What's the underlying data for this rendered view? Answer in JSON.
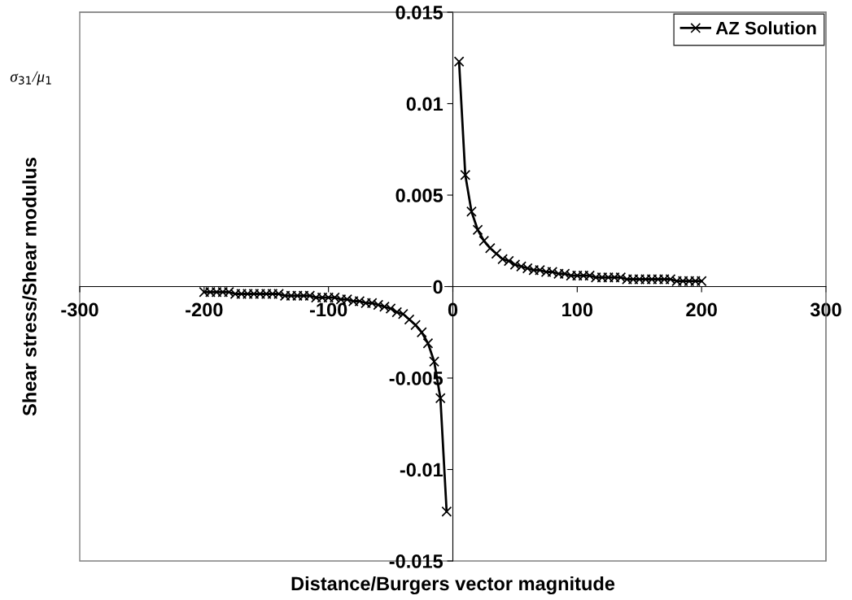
{
  "chart_data": {
    "type": "line",
    "xlabel": "Distance/Burgers vector magnitude",
    "ylabel": "Shear stress/Shear modulus",
    "annotations": [
      "σ$_{31}$/μ$_{1}$"
    ],
    "xlim": [
      -300,
      300
    ],
    "xticks": [
      -300,
      -200,
      -100,
      0,
      100,
      200,
      300
    ],
    "ylim": [
      -0.015,
      0.015
    ],
    "yticks": [
      -0.015,
      -0.01,
      -0.005,
      0,
      0.005,
      0.01,
      0.015
    ],
    "grid": false,
    "legend": "top right",
    "marker": "cross",
    "line_style": "solid",
    "series": [
      {
        "name": "AZ Solution",
        "color": "#000000",
        "x": [
          -200,
          -195,
          -190,
          -185,
          -180,
          -175,
          -170,
          -165,
          -160,
          -155,
          -150,
          -145,
          -140,
          -135,
          -130,
          -125,
          -120,
          -115,
          -110,
          -105,
          -100,
          -95,
          -90,
          -85,
          -80,
          -75,
          -70,
          -65,
          -60,
          -55,
          -50,
          -45,
          -40,
          -35,
          -30,
          -25,
          -20,
          -15,
          -10,
          -5,
          null,
          5,
          10,
          15,
          20,
          25,
          30,
          35,
          40,
          45,
          50,
          55,
          60,
          65,
          70,
          75,
          80,
          85,
          90,
          95,
          100,
          105,
          110,
          115,
          120,
          125,
          130,
          135,
          140,
          145,
          150,
          155,
          160,
          165,
          170,
          175,
          180,
          185,
          190,
          195,
          200
        ],
        "values": [
          -0.0003,
          -0.0003,
          -0.0003,
          -0.0003,
          -0.0003,
          -0.0004,
          -0.0004,
          -0.0004,
          -0.0004,
          -0.0004,
          -0.0004,
          -0.0004,
          -0.0004,
          -0.0005,
          -0.0005,
          -0.0005,
          -0.0005,
          -0.0005,
          -0.0006,
          -0.0006,
          -0.0006,
          -0.0006,
          -0.0007,
          -0.0007,
          -0.0008,
          -0.0008,
          -0.0009,
          -0.0009,
          -0.001,
          -0.0011,
          -0.0012,
          -0.0014,
          -0.0015,
          -0.0018,
          -0.0021,
          -0.0025,
          -0.0031,
          -0.0041,
          -0.0061,
          -0.0123,
          null,
          0.0123,
          0.0061,
          0.0041,
          0.0031,
          0.0025,
          0.0021,
          0.0018,
          0.0015,
          0.0014,
          0.0012,
          0.0011,
          0.001,
          0.0009,
          0.0009,
          0.0008,
          0.0008,
          0.0007,
          0.0007,
          0.0006,
          0.0006,
          0.0006,
          0.0006,
          0.0005,
          0.0005,
          0.0005,
          0.0005,
          0.0005,
          0.0004,
          0.0004,
          0.0004,
          0.0004,
          0.0004,
          0.0004,
          0.0004,
          0.0004,
          0.0003,
          0.0003,
          0.0003,
          0.0003,
          0.0003
        ]
      }
    ]
  }
}
